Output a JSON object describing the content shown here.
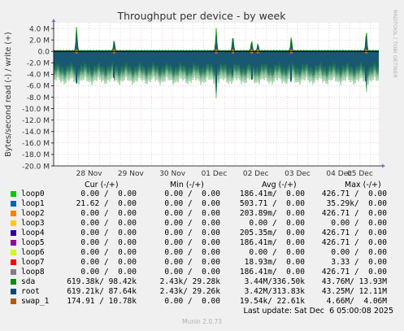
{
  "title": "Throughput per device - by week",
  "watermark": "RRDTOOL / TOBI OETIKER",
  "chart_data": {
    "type": "area",
    "title": "Throughput per device - by week",
    "ylabel": "Bytes/second read (-) / write (+)",
    "ylim": [
      -20000000,
      5000000
    ],
    "yticks": [
      {
        "v": 4000000,
        "label": "4.0 M"
      },
      {
        "v": 2000000,
        "label": "2.0 M"
      },
      {
        "v": 0,
        "label": "0.0"
      },
      {
        "v": -2000000,
        "label": "-2.0 M"
      },
      {
        "v": -4000000,
        "label": "-4.0 M"
      },
      {
        "v": -6000000,
        "label": "-6.0 M"
      },
      {
        "v": -8000000,
        "label": "-8.0 M"
      },
      {
        "v": -10000000,
        "label": "-10.0 M"
      },
      {
        "v": -12000000,
        "label": "-12.0 M"
      },
      {
        "v": -14000000,
        "label": "-14.0 M"
      },
      {
        "v": -16000000,
        "label": "-16.0 M"
      },
      {
        "v": -18000000,
        "label": "-18.0 M"
      },
      {
        "v": -20000000,
        "label": "-20.0 M"
      }
    ],
    "xrange_days": [
      -0.35,
      7.45
    ],
    "xticks": [
      {
        "d": 0.5,
        "label": "28 Nov"
      },
      {
        "d": 1.5,
        "label": "29 Nov"
      },
      {
        "d": 2.5,
        "label": "30 Nov"
      },
      {
        "d": 3.5,
        "label": "01 Dec"
      },
      {
        "d": 4.5,
        "label": "02 Dec"
      },
      {
        "d": 5.5,
        "label": "03 Dec"
      },
      {
        "d": 6.5,
        "label": "04 Dec"
      },
      {
        "d": 7.0,
        "label": "05 Dec"
      }
    ],
    "grid": true,
    "series": [
      {
        "name": "sda / root",
        "color": "#0d4f6b",
        "write_spikes": [
          {
            "d": 0.2,
            "v": 4900000
          },
          {
            "d": 1.1,
            "v": 2300000
          },
          {
            "d": 3.55,
            "v": 3900000
          },
          {
            "d": 3.95,
            "v": 3300000
          },
          {
            "d": 4.4,
            "v": 2200000
          },
          {
            "d": 4.55,
            "v": 1500000
          },
          {
            "d": 5.35,
            "v": 2900000
          },
          {
            "d": 7.15,
            "v": 4200000
          }
        ],
        "read_baseline_low": -2500000,
        "read_baseline_high": -5200000,
        "read_spikes": [
          {
            "d": 0.2,
            "v": -7000000
          },
          {
            "d": 1.1,
            "v": -6700000
          },
          {
            "d": 3.55,
            "v": -8200000
          },
          {
            "d": 3.95,
            "v": -6400000
          },
          {
            "d": 4.4,
            "v": -7800000
          },
          {
            "d": 4.55,
            "v": -5500000
          },
          {
            "d": 5.35,
            "v": -7500000
          },
          {
            "d": 7.15,
            "v": -10800000
          }
        ]
      }
    ]
  },
  "legend": {
    "headers": {
      "cur": "Cur (-/+)",
      "min": "Min (-/+)",
      "avg": "Avg (-/+)",
      "max": "Max (-/+)"
    },
    "rows": [
      {
        "name": "loop0",
        "color": "#00cc00",
        "cur": "0.00 /  0.00",
        "min": "0.00 /  0.00",
        "avg": "186.41m/  0.00",
        "max": "426.71 /  0.00"
      },
      {
        "name": "loop1",
        "color": "#0066b3",
        "cur": "21.62 /  0.00",
        "min": "0.00 /  0.00",
        "avg": "503.71 /  0.00",
        "max": "35.29k/  0.00"
      },
      {
        "name": "loop2",
        "color": "#ff8000",
        "cur": "0.00 /  0.00",
        "min": "0.00 /  0.00",
        "avg": "203.89m/  0.00",
        "max": "426.71 /  0.00"
      },
      {
        "name": "loop3",
        "color": "#ffcc00",
        "cur": "0.00 /  0.00",
        "min": "0.00 /  0.00",
        "avg": "0.00 /  0.00",
        "max": "0.00 /  0.00"
      },
      {
        "name": "loop4",
        "color": "#330099",
        "cur": "0.00 /  0.00",
        "min": "0.00 /  0.00",
        "avg": "205.35m/  0.00",
        "max": "426.71 /  0.00"
      },
      {
        "name": "loop5",
        "color": "#990099",
        "cur": "0.00 /  0.00",
        "min": "0.00 /  0.00",
        "avg": "186.41m/  0.00",
        "max": "426.71 /  0.00"
      },
      {
        "name": "loop6",
        "color": "#ccff00",
        "cur": "0.00 /  0.00",
        "min": "0.00 /  0.00",
        "avg": "0.00 /  0.00",
        "max": "0.00 /  0.00"
      },
      {
        "name": "loop7",
        "color": "#ff0000",
        "cur": "0.00 /  0.00",
        "min": "0.00 /  0.00",
        "avg": "18.93m/  0.00",
        "max": "3.33 /  0.00"
      },
      {
        "name": "loop8",
        "color": "#808080",
        "cur": "0.00 /  0.00",
        "min": "0.00 /  0.00",
        "avg": "186.41m/  0.00",
        "max": "426.71 /  0.00"
      },
      {
        "name": "sda",
        "color": "#008f00",
        "cur": "619.38k/ 98.42k",
        "min": "2.43k/ 29.28k",
        "avg": "3.44M/336.50k",
        "max": "43.76M/ 13.93M"
      },
      {
        "name": "root",
        "color": "#00487d",
        "cur": "619.21k/ 87.64k",
        "min": "2.43k/ 29.26k",
        "avg": "3.42M/313.83k",
        "max": "43.25M/ 12.11M"
      },
      {
        "name": "swap_1",
        "color": "#b35a00",
        "cur": "174.91 / 10.78k",
        "min": "0.00 /  0.00",
        "avg": "19.54k/ 22.61k",
        "max": "4.66M/  4.06M"
      }
    ]
  },
  "last_update": "Last update: Sat Dec  6 05:00:08 2025",
  "version": "Munin 2.0.73"
}
